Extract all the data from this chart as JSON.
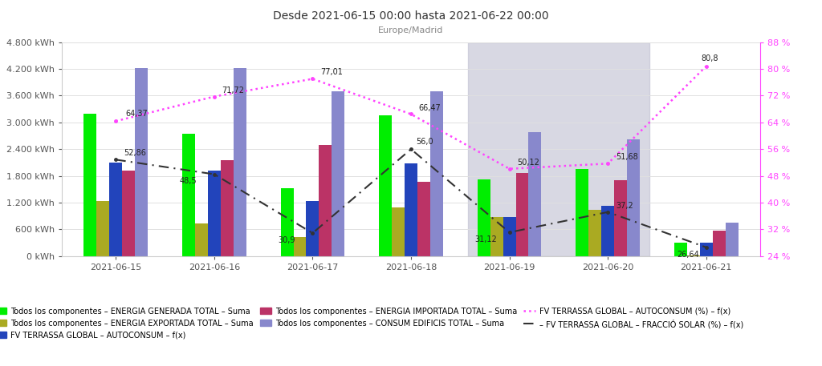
{
  "title": "Desde 2021-06-15 00:00 hasta 2021-06-22 00:00",
  "subtitle": "Europe/Madrid",
  "dates": [
    "2021-06-15",
    "2021-06-16",
    "2021-06-17",
    "2021-06-18",
    "2021-06-19",
    "2021-06-20",
    "2021-06-21"
  ],
  "energia_generada": [
    3200,
    2750,
    1520,
    3150,
    1720,
    1950,
    310
  ],
  "energia_exportada": [
    1230,
    730,
    430,
    1090,
    870,
    1040,
    12
  ],
  "autoconsum_fx": [
    2100,
    1920,
    1230,
    2080,
    870,
    1130,
    295
  ],
  "energia_importada": [
    1920,
    2150,
    2500,
    1660,
    1870,
    1700,
    570
  ],
  "consum_edificis": [
    4220,
    4210,
    3690,
    3700,
    2780,
    2620,
    760
  ],
  "autoconsum_pct": [
    64.37,
    71.72,
    77.01,
    66.47,
    50.12,
    51.68,
    80.8
  ],
  "fraccio_solar_pct": [
    52.86,
    48.5,
    30.9,
    56.0,
    31.12,
    37.2,
    26.64
  ],
  "shaded_indices": [
    4,
    5
  ],
  "ylim_left": [
    0,
    4800
  ],
  "ylim_right": [
    24,
    88
  ],
  "yticks_left": [
    0,
    600,
    1200,
    1800,
    2400,
    3000,
    3600,
    4200,
    4800
  ],
  "yticks_right": [
    24,
    32,
    40,
    48,
    56,
    64,
    72,
    80,
    88
  ],
  "ytick_labels_left": [
    "0 kWh",
    "600 kWh",
    "1.200 kWh",
    "1.800 kWh",
    "2.400 kWh",
    "3.000 kWh",
    "3.600 kWh",
    "4.200 kWh",
    "4.800 kWh"
  ],
  "ytick_labels_right": [
    "24 %",
    "32 %",
    "40 %",
    "48 %",
    "56 %",
    "64 %",
    "72 %",
    "80 %",
    "88 %"
  ],
  "color_generada": "#00ee00",
  "color_exportada": "#aaaa22",
  "color_autoconsum_bar": "#2244bb",
  "color_importada": "#bb3366",
  "color_consum": "#8888cc",
  "color_autoconsum_pct_line": "#ff44ff",
  "color_fraccio_solar_line": "#333333",
  "background_color": "#ffffff",
  "shade_color": "#b8b8cc",
  "bar_width": 0.13
}
